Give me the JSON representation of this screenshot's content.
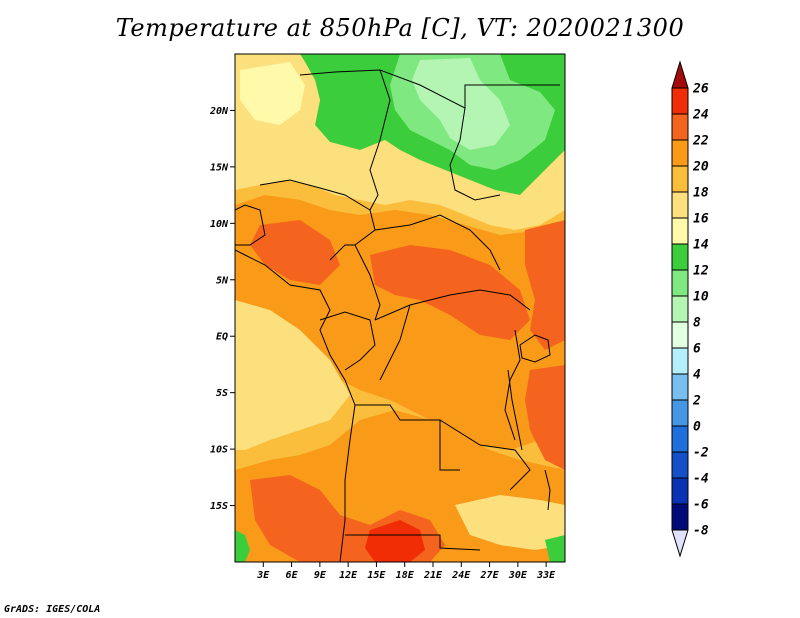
{
  "title": "Temperature at 850hPa [C], VT: 2020021300",
  "credit": "GrADS: IGES/COLA",
  "map": {
    "lon_range": [
      0,
      35
    ],
    "lat_range": [
      -20,
      25
    ],
    "lat_ticks": [
      {
        "value": 20,
        "label": "20N"
      },
      {
        "value": 15,
        "label": "15N"
      },
      {
        "value": 10,
        "label": "10N"
      },
      {
        "value": 5,
        "label": "5N"
      },
      {
        "value": 0,
        "label": "EQ"
      },
      {
        "value": -5,
        "label": "5S"
      },
      {
        "value": -10,
        "label": "10S"
      },
      {
        "value": -15,
        "label": "15S"
      }
    ],
    "lon_ticks": [
      {
        "value": 3,
        "label": "3E"
      },
      {
        "value": 6,
        "label": "6E"
      },
      {
        "value": 9,
        "label": "9E"
      },
      {
        "value": 12,
        "label": "12E"
      },
      {
        "value": 15,
        "label": "15E"
      },
      {
        "value": 18,
        "label": "18E"
      },
      {
        "value": 21,
        "label": "21E"
      },
      {
        "value": 24,
        "label": "24E"
      },
      {
        "value": 27,
        "label": "27E"
      },
      {
        "value": 30,
        "label": "30E"
      },
      {
        "value": 33,
        "label": "33E"
      }
    ]
  },
  "colorbar": {
    "levels": [
      {
        "label": "26",
        "color": "#a50a0a"
      },
      {
        "label": "24",
        "color": "#f02d05"
      },
      {
        "label": "22",
        "color": "#f5641e"
      },
      {
        "label": "20",
        "color": "#f99a19"
      },
      {
        "label": "18",
        "color": "#fbbd3c"
      },
      {
        "label": "16",
        "color": "#fde07e"
      },
      {
        "label": "14",
        "color": "#fffaaa"
      },
      {
        "label": "12",
        "color": "#3ccd3c"
      },
      {
        "label": "10",
        "color": "#80e880"
      },
      {
        "label": "8",
        "color": "#b4f5b4"
      },
      {
        "label": "6",
        "color": "#e1ffe1"
      },
      {
        "label": "4",
        "color": "#b4f0fa"
      },
      {
        "label": "2",
        "color": "#78bef0"
      },
      {
        "label": "0",
        "color": "#4696e6"
      },
      {
        "label": "-2",
        "color": "#1e6edc"
      },
      {
        "label": "-4",
        "color": "#1450c8"
      },
      {
        "label": "-6",
        "color": "#0a32b4"
      },
      {
        "label": "-8",
        "color": "#000a78"
      }
    ],
    "under_color": "#e1e1ff"
  }
}
